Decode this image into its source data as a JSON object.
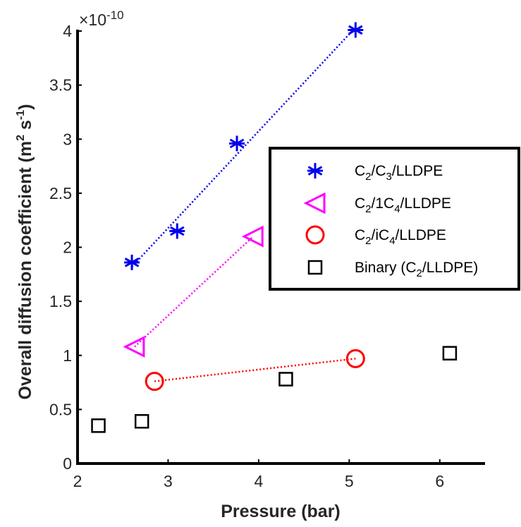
{
  "chart_data": {
    "type": "scatter",
    "xlabel": "Pressure (bar)",
    "ylabel": "Overall diffusion coefficient (m",
    "ylabel_sup1": "2",
    "ylabel_mid": " s",
    "ylabel_sup2": "-1",
    "ylabel_end": ")",
    "y_exponent_base": "×10",
    "y_exponent_power": "-10",
    "xlim": [
      2,
      6.5
    ],
    "ylim": [
      0,
      4
    ],
    "xticks": [
      2,
      3,
      4,
      5,
      6
    ],
    "yticks": [
      0,
      0.5,
      1,
      1.5,
      2,
      2.5,
      3,
      3.5,
      4
    ],
    "xtick_labels": [
      "2",
      "3",
      "4",
      "5",
      "6"
    ],
    "ytick_labels": [
      "0",
      "0.5",
      "1",
      "1.5",
      "2",
      "2.5",
      "3",
      "3.5",
      "4"
    ],
    "legend_position": "right",
    "series": [
      {
        "legend": {
          "base": "C",
          "s1": "2",
          "mid": "/C",
          "s2": "3",
          "tail": "/LLDPE"
        },
        "marker": "asterisk",
        "color": "#0000ee",
        "fit_line": true,
        "points": [
          [
            2.6,
            1.86
          ],
          [
            3.1,
            2.15
          ],
          [
            3.76,
            2.96
          ],
          [
            5.07,
            4.01
          ]
        ]
      },
      {
        "legend": {
          "base": "C",
          "s1": "2",
          "mid": "/1C",
          "s2": "4",
          "tail": "/LLDPE"
        },
        "marker": "triangle-left",
        "color": "#ff00ff",
        "fit_line": true,
        "points": [
          [
            2.63,
            1.08
          ],
          [
            3.94,
            2.1
          ]
        ]
      },
      {
        "legend": {
          "base": "C",
          "s1": "2",
          "mid": "/iC",
          "s2": "4",
          "tail": "/LLDPE"
        },
        "marker": "circle",
        "color": "#ff0000",
        "fit_line": true,
        "points": [
          [
            2.85,
            0.76
          ],
          [
            5.07,
            0.97
          ]
        ]
      },
      {
        "legend": {
          "base": "Binary (C",
          "s1": "2",
          "mid": "/LLDPE)",
          "s2": "",
          "tail": ""
        },
        "marker": "square",
        "color": "#000000",
        "fit_line": false,
        "points": [
          [
            2.23,
            0.35
          ],
          [
            2.71,
            0.39
          ],
          [
            4.3,
            0.78
          ],
          [
            6.11,
            1.02
          ]
        ]
      }
    ]
  }
}
